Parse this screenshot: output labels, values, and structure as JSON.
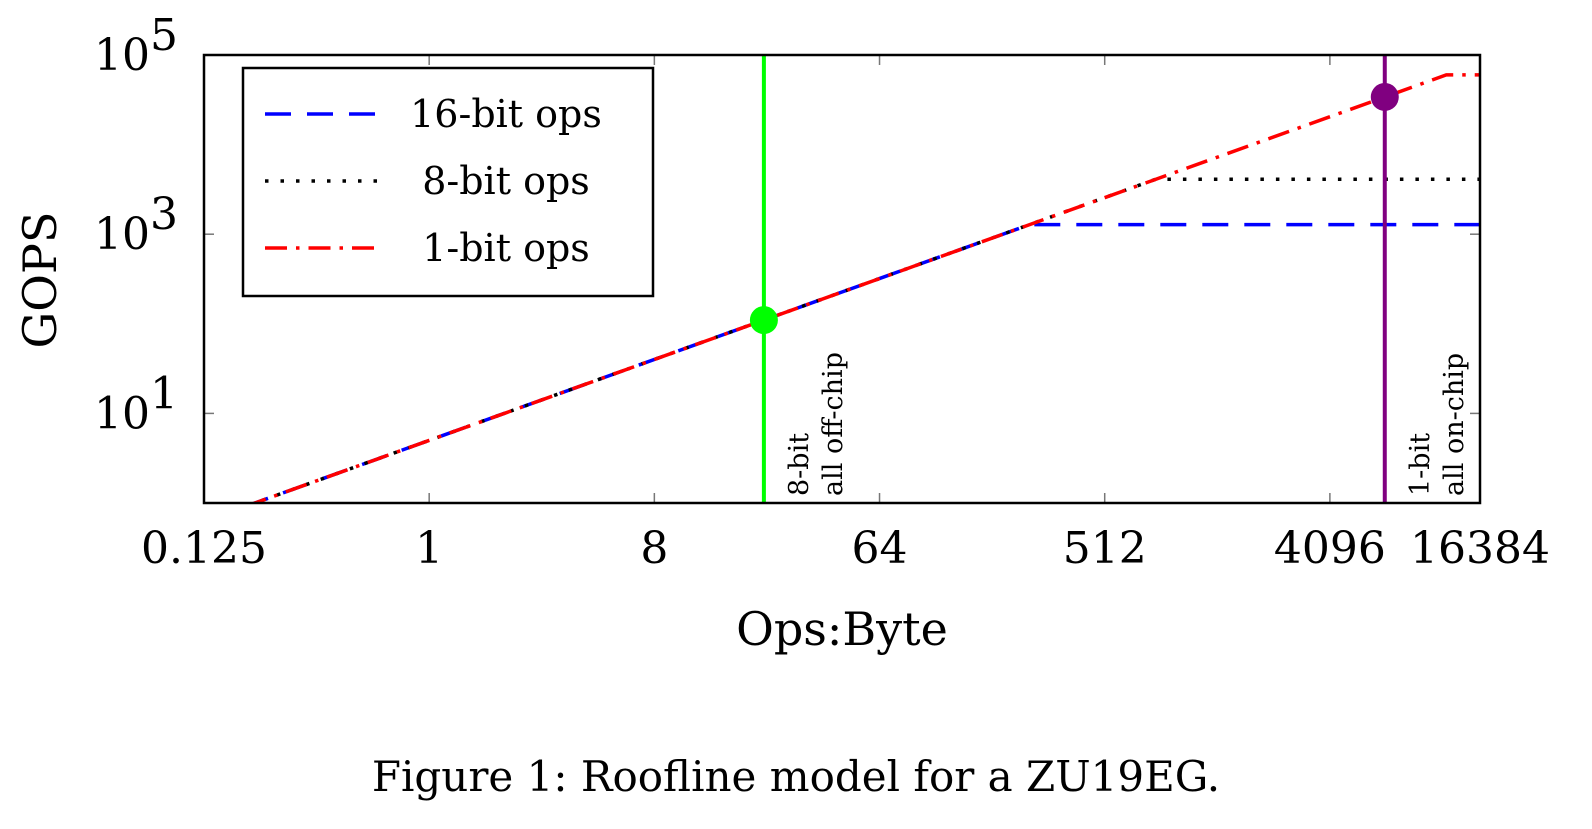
{
  "chart_data": {
    "type": "line",
    "xscale": "log2",
    "yscale": "log10",
    "xlim": [
      0.125,
      16384
    ],
    "ylim": [
      1,
      100000
    ],
    "xlabel": "Ops:Byte",
    "ylabel": "GOPS",
    "x_ticks": [
      0.125,
      1,
      8,
      64,
      512,
      4096,
      16384
    ],
    "x_tick_labels": [
      "0.125",
      "1",
      "8",
      "64",
      "512",
      "4096",
      "16384"
    ],
    "y_ticks": [
      {
        "base": "10",
        "exp": "1",
        "value": 10
      },
      {
        "base": "10",
        "exp": "3",
        "value": 1000
      },
      {
        "base": "10",
        "exp": "5",
        "value": 100000
      }
    ],
    "legend_position": "top-left",
    "bandwidth_ops_per_byte_slope": 5,
    "series": [
      {
        "name": "16-bit ops",
        "color": "#0000ff",
        "style": "dashed",
        "x": [
          0.125,
          256,
          16384
        ],
        "y": [
          0.625,
          1280,
          1280
        ]
      },
      {
        "name": "8-bit ops",
        "color": "#000000",
        "style": "dotted",
        "x": [
          0.125,
          819,
          16384
        ],
        "y": [
          0.625,
          4096,
          4096
        ]
      },
      {
        "name": "1-bit ops",
        "color": "#ff0000",
        "style": "dashdot",
        "x": [
          0.125,
          12000,
          16384
        ],
        "y": [
          0.625,
          60000,
          60000
        ]
      }
    ],
    "vertical_lines": [
      {
        "x": 22,
        "color": "#00ff00",
        "label_lines": [
          "8-bit",
          "all off-chip"
        ],
        "marker_y": 110
      },
      {
        "x": 6800,
        "color": "#800080",
        "label_lines": [
          "1-bit",
          "all on-chip"
        ],
        "marker_y": 34000
      }
    ]
  },
  "caption": "Figure 1: Roofline model for a ZU19EG."
}
